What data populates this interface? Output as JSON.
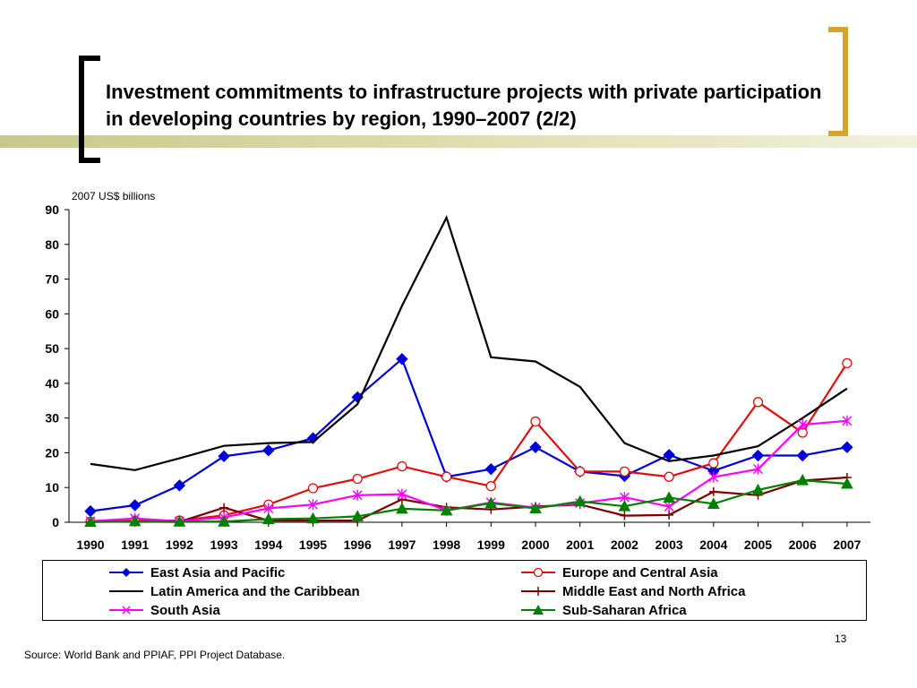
{
  "slide": {
    "title": "Investment commitments to infrastructure projects with private participation in developing countries by region, 1990–2007 (2/2)",
    "source": "Source: World Bank and PPIAF, PPI Project Database.",
    "page_number": "13"
  },
  "chart_data": {
    "type": "line",
    "title": "",
    "xlabel": "",
    "ylabel": "2007 US$ billions",
    "ylim": [
      0,
      90
    ],
    "yticks": [
      0,
      10,
      20,
      30,
      40,
      50,
      60,
      70,
      80,
      90
    ],
    "grid": false,
    "legend_position": "bottom",
    "categories": [
      "1990",
      "1991",
      "1992",
      "1993",
      "1994",
      "1995",
      "1996",
      "1997",
      "1998",
      "1999",
      "2000",
      "2001",
      "2002",
      "2003",
      "2004",
      "2005",
      "2006",
      "2007"
    ],
    "series": [
      {
        "name": "East Asia and Pacific",
        "color": "#0000d8",
        "marker": "diamond",
        "values": [
          3.2,
          4.9,
          10.6,
          19.0,
          20.7,
          24.2,
          36.0,
          47.0,
          13.1,
          15.3,
          21.6,
          14.6,
          13.3,
          19.4,
          14.8,
          19.2,
          19.2,
          21.6
        ]
      },
      {
        "name": "Europe and Central Asia",
        "color": "#e01010",
        "marker": "circle",
        "values": [
          0.2,
          0.5,
          0.5,
          2.0,
          5.1,
          9.8,
          12.5,
          16.1,
          13.1,
          10.4,
          29.0,
          14.6,
          14.6,
          13.1,
          17.0,
          34.6,
          25.8,
          45.8
        ]
      },
      {
        "name": "Latin America and the Caribbean",
        "color": "#000000",
        "marker": "none",
        "values": [
          16.8,
          15.0,
          18.4,
          22.0,
          22.8,
          23.1,
          34.0,
          62.3,
          87.7,
          47.5,
          46.3,
          39.0,
          22.8,
          17.6,
          19.2,
          21.9,
          30.0,
          38.5
        ]
      },
      {
        "name": "Middle East and North Africa",
        "color": "#7b0000",
        "marker": "plus",
        "values": [
          0.1,
          0.2,
          0.1,
          4.2,
          0.5,
          0.5,
          0.5,
          6.6,
          4.3,
          3.7,
          4.5,
          5.1,
          1.9,
          2.1,
          8.8,
          7.8,
          12.0,
          12.9
        ]
      },
      {
        "name": "South Asia",
        "color": "#ff00ff",
        "marker": "x",
        "values": [
          0.3,
          1.1,
          0.3,
          1.4,
          4.0,
          5.1,
          7.8,
          8.1,
          3.4,
          5.7,
          4.2,
          5.5,
          7.2,
          4.5,
          13.0,
          15.3,
          28.1,
          29.2
        ]
      },
      {
        "name": "Sub-Saharan Africa",
        "color": "#008000",
        "marker": "triangle",
        "values": [
          0.1,
          0.3,
          0.2,
          0.2,
          0.9,
          1.1,
          1.7,
          3.9,
          3.4,
          5.5,
          4.0,
          6.0,
          4.6,
          7.1,
          5.3,
          9.3,
          12.1,
          11.1
        ]
      }
    ]
  }
}
